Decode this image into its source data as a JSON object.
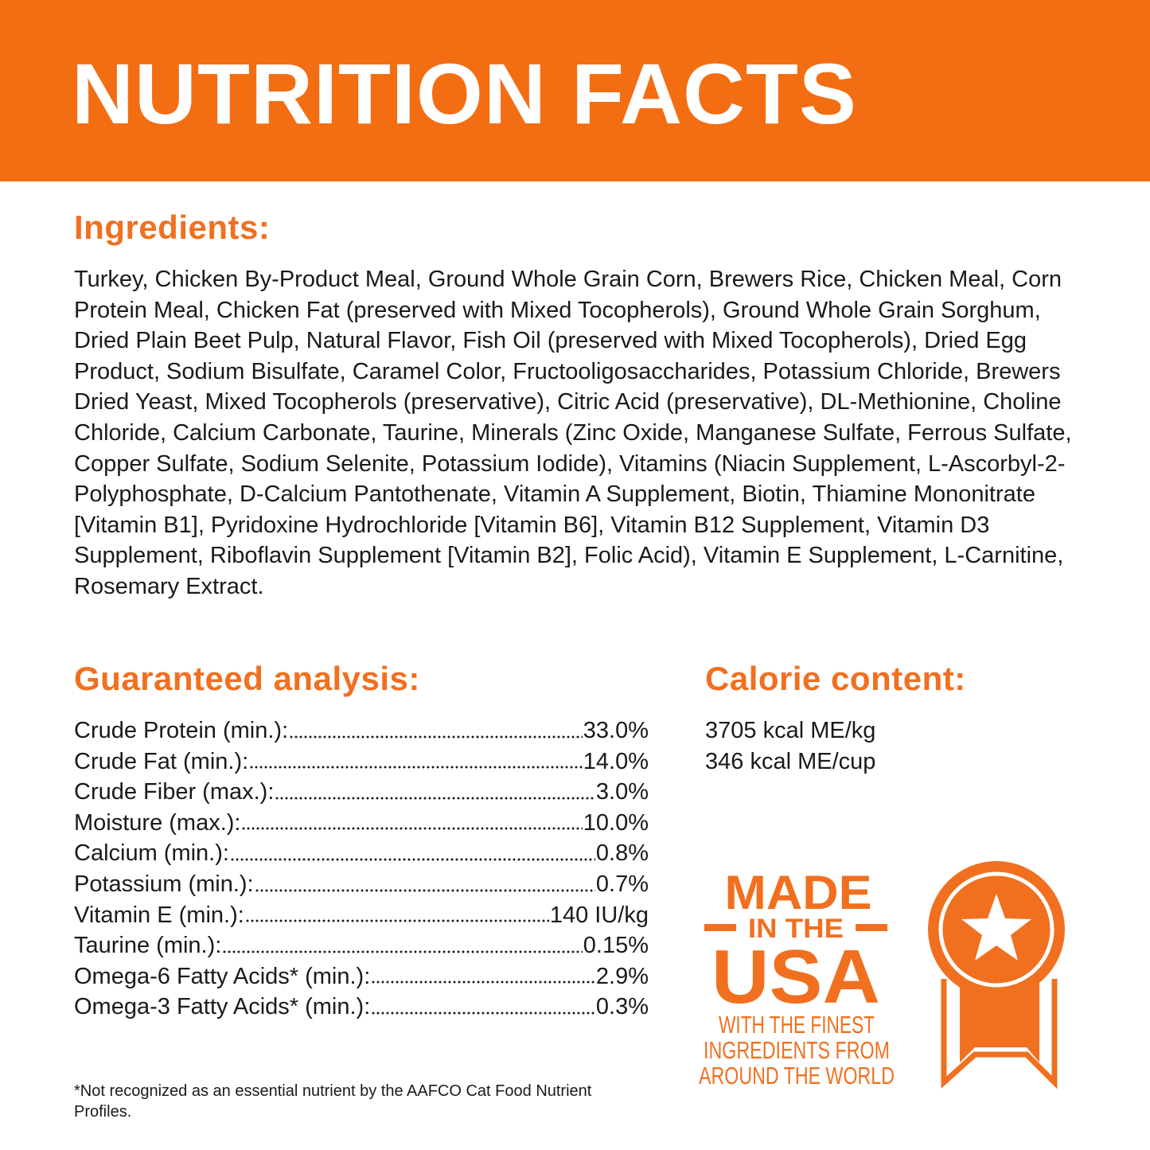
{
  "header": {
    "title": "NUTRITION FACTS"
  },
  "ingredients": {
    "heading": "Ingredients:",
    "text": "Turkey, Chicken By-Product Meal, Ground Whole Grain Corn, Brewers Rice, Chicken Meal, Corn Protein Meal, Chicken Fat (preserved with Mixed Tocopherols), Ground Whole Grain Sorghum, Dried Plain Beet Pulp, Natural Flavor, Fish Oil (preserved with Mixed Tocopherols), Dried Egg Product, Sodium Bisulfate, Caramel Color, Fructooligosaccharides, Potassium Chloride, Brewers Dried Yeast, Mixed Tocopherols (preservative), Citric Acid (preservative), DL-Methionine, Choline Chloride, Calcium Carbonate, Taurine, Minerals (Zinc Oxide, Manganese Sulfate, Ferrous Sulfate, Copper Sulfate, Sodium Selenite, Potassium Iodide), Vitamins (Niacin Supplement, L-Ascorbyl-2-Polyphosphate, D-Calcium Pantothenate, Vitamin A Supplement, Biotin, Thiamine Mononitrate [Vitamin B1], Pyridoxine Hydrochloride [Vitamin B6], Vitamin B12 Supplement, Vitamin D3 Supplement, Riboflavin Supplement [Vitamin B2], Folic Acid), Vitamin E Supplement, L-Carnitine, Rosemary Extract."
  },
  "analysis": {
    "heading": "Guaranteed analysis:",
    "rows": [
      [
        "Crude Protein (min.):",
        "33.0%"
      ],
      [
        "Crude Fat (min.):",
        "14.0%"
      ],
      [
        "Crude Fiber (max.):",
        "3.0%"
      ],
      [
        "Moisture (max.):",
        "10.0%"
      ],
      [
        "Calcium (min.):",
        "0.8%"
      ],
      [
        "Potassium (min.):",
        "0.7%"
      ],
      [
        "Vitamin E (min.):",
        "140 IU/kg"
      ],
      [
        "Taurine (min.):",
        "0.15%"
      ],
      [
        "Omega-6 Fatty Acids* (min.):",
        "2.9%"
      ],
      [
        "Omega-3 Fatty Acids* (min.):",
        "0.3%"
      ]
    ]
  },
  "calorie": {
    "heading": "Calorie content:",
    "lines": [
      "3705 kcal ME/kg",
      "346 kcal ME/cup"
    ]
  },
  "badge": {
    "line1": "MADE",
    "line2": "IN THE",
    "line3": "USA",
    "line4": "WITH THE FINEST",
    "line5": "INGREDIENTS FROM",
    "line6": "AROUND THE WORLD"
  },
  "footnote": "*Not recognized as an essential nutrient by the AAFCO Cat Food Nutrient Profiles."
}
